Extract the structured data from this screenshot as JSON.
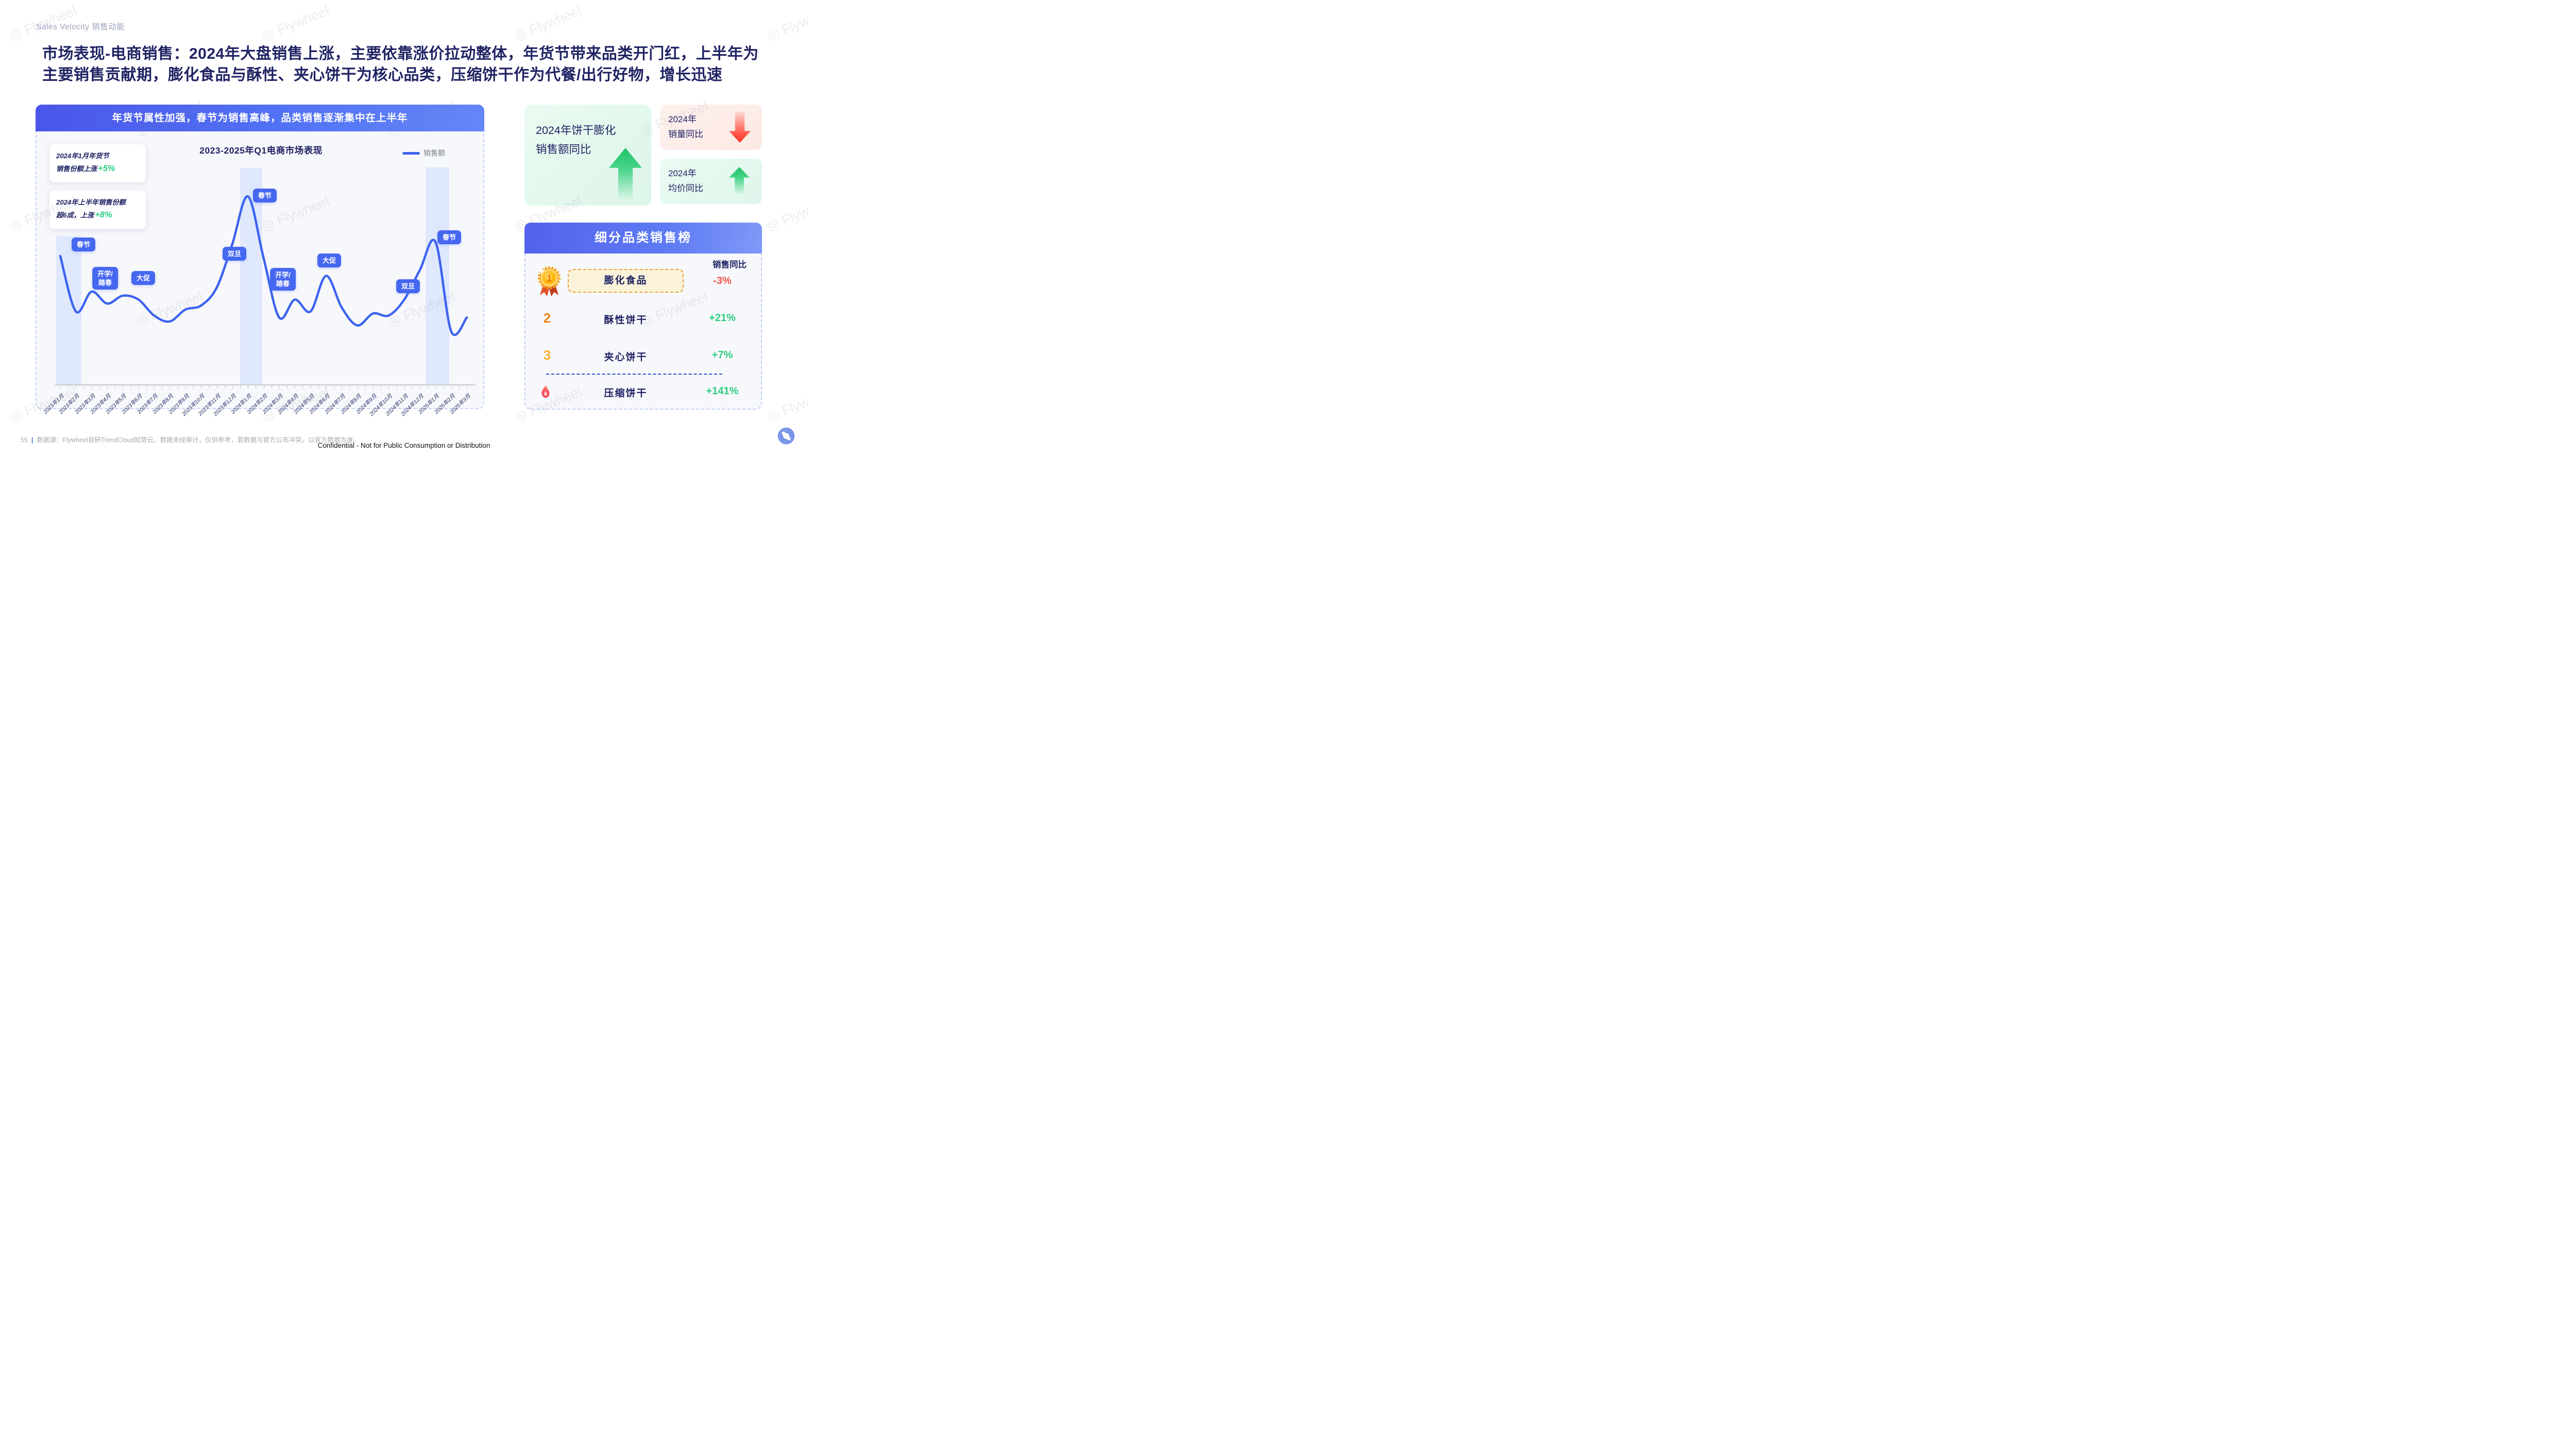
{
  "page": {
    "eyebrow": "Sales Velocity 销售动能",
    "title_line1": "市场表现-电商销售：2024年大盘销售上涨，主要依靠涨价拉动整体，年货节带来品类开门红，上半年为",
    "title_line2": "主要销售贡献期，膨化食品与酥性、夹心饼干为核心品类，压缩饼干作为代餐/出行好物，增长迅速",
    "title_color": "#202363",
    "accent_blue": "#3D63F0",
    "watermark_text": "Flywheel",
    "footer_page_number": "55",
    "footer_source": "数据源：Flywheel自研TrendCloud知势云。数据未经审计，仅供参考，若数据与官方公布冲突，以官方数据为准。",
    "footer_confidential": "Confidential - Not for Public Consumption or Distribution"
  },
  "chart_panel": {
    "banner": "年货节属性加强，春节为销售高峰，品类销售逐渐集中在上半年",
    "annotations": [
      {
        "line1": "2024年1月年货节",
        "line2": "销售份额上涨",
        "value": "+5%"
      },
      {
        "line1": "2024年上半年销售份额",
        "line2": "超6成，上涨",
        "value": "+8%"
      }
    ]
  },
  "chart_data": {
    "type": "line",
    "title": "2023-2025年Q1电商市场表现",
    "legend": [
      "销售额"
    ],
    "legend_position": "top-right",
    "grid": false,
    "y_axis_visible": false,
    "x": [
      "2023年1月",
      "2023年2月",
      "2023年3月",
      "2023年4月",
      "2023年5月",
      "2023年6月",
      "2023年7月",
      "2023年8月",
      "2023年9月",
      "2023年10月",
      "2023年11月",
      "2023年12月",
      "2024年1月",
      "2024年2月",
      "2024年3月",
      "2024年4月",
      "2024年5月",
      "2024年6月",
      "2024年7月",
      "2024年8月",
      "2024年9月",
      "2024年10月",
      "2024年11月",
      "2024年12月",
      "2025年1月",
      "2025年2月",
      "2025年3月"
    ],
    "series": [
      {
        "name": "销售额",
        "color": "#3D63F0",
        "values": [
          65,
          37,
          47,
          41,
          45,
          43,
          35,
          32,
          38,
          40,
          49,
          71,
          95,
          64,
          34,
          43,
          37,
          55,
          39,
          30,
          36,
          35,
          43,
          58,
          72,
          27,
          34
        ]
      }
    ],
    "ylim": [
      0,
      100
    ],
    "highlight_bands": [
      {
        "from": "2023年1月",
        "to": "2023年2月"
      },
      {
        "from": "2024年1月",
        "to": "2024年2月"
      },
      {
        "from": "2024年12月",
        "to": "2025年1月"
      }
    ],
    "events": [
      {
        "label": "春节",
        "month": "2023年1月"
      },
      {
        "label": "开学/\n踏春",
        "month": "2023年3月"
      },
      {
        "label": "大促",
        "month": "2023年5月"
      },
      {
        "label": "双旦",
        "month": "2023年12月"
      },
      {
        "label": "春节",
        "month": "2024年2月"
      },
      {
        "label": "开学/\n踏春",
        "month": "2024年4月"
      },
      {
        "label": "大促",
        "month": "2024年6月"
      },
      {
        "label": "双旦",
        "month": "2024年12月"
      },
      {
        "label": "春节",
        "month": "2025年1月"
      }
    ]
  },
  "kpi_cards": [
    {
      "line1": "2024年饼干膨化",
      "line2": "销售额同比",
      "direction": "up"
    },
    {
      "line1": "2024年",
      "line2": "销量同比",
      "direction": "down"
    },
    {
      "line1": "2024年",
      "line2": "均价同比",
      "direction": "up"
    }
  ],
  "ranking": {
    "header": "细分品类销售榜",
    "column_header": "销售同比",
    "rows": [
      {
        "rank": "1",
        "badge": "medal-icon",
        "label": "膨化食品",
        "value": "-3%",
        "value_color": "#F0534F"
      },
      {
        "rank": "2",
        "rank_color": "#F0821E",
        "label": "酥性饼干",
        "value": "+21%",
        "value_color": "#2DCE7E"
      },
      {
        "rank": "3",
        "rank_color": "#F6B235",
        "label": "夹心饼干",
        "value": "+7%",
        "value_color": "#2DCE7E"
      },
      {
        "rank": "hot",
        "badge": "flame-icon",
        "label": "压缩饼干",
        "value": "+141%",
        "value_color": "#2DCE7E"
      }
    ]
  }
}
